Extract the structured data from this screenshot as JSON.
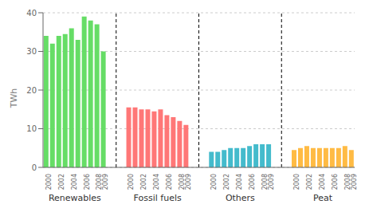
{
  "chart_data": {
    "type": "bar",
    "categories": [
      "2000",
      null,
      "2002",
      null,
      "2004",
      null,
      "2006",
      null,
      "2008",
      "2009",
      "2000",
      null,
      "2002",
      null,
      "2004",
      null,
      "2006",
      null,
      "2008",
      "2009",
      "2000",
      null,
      "2002",
      null,
      "2004",
      null,
      "2006",
      null,
      "2008",
      "2009",
      "2000",
      null,
      "2002",
      null,
      "2004",
      null,
      "2006",
      null,
      "2008",
      "2009"
    ],
    "series": [
      {
        "name": "Renewables",
        "color": "#66dd66",
        "values": [
          34.0,
          32.0,
          34.0,
          34.5,
          36.0,
          33.0,
          39.0,
          38.0,
          37.0,
          30.0,
          null,
          null,
          null,
          null,
          null,
          null,
          null,
          null,
          null,
          null,
          null,
          null,
          null,
          null,
          null,
          null,
          null,
          null,
          null,
          null,
          null,
          null,
          null,
          null,
          null,
          null,
          null,
          null,
          null,
          null
        ]
      },
      {
        "name": "Fossil fuels",
        "color": "#ff7777",
        "values": [
          null,
          null,
          null,
          null,
          null,
          null,
          null,
          null,
          null,
          null,
          15.5,
          15.5,
          15.0,
          15.0,
          14.5,
          15.0,
          13.5,
          13.0,
          12.0,
          11.0,
          null,
          null,
          null,
          null,
          null,
          null,
          null,
          null,
          null,
          null,
          null,
          null,
          null,
          null,
          null,
          null,
          null,
          null,
          null,
          null
        ]
      },
      {
        "name": "Others",
        "color": "#44bbcc",
        "values": [
          null,
          null,
          null,
          null,
          null,
          null,
          null,
          null,
          null,
          null,
          null,
          null,
          null,
          null,
          null,
          null,
          null,
          null,
          null,
          null,
          4.0,
          4.0,
          4.5,
          5.0,
          5.0,
          5.0,
          5.5,
          6.0,
          6.0,
          6.0,
          null,
          null,
          null,
          null,
          null,
          null,
          null,
          null,
          null,
          null
        ]
      },
      {
        "name": "Peat",
        "color": "#ffbb44",
        "values": [
          null,
          null,
          null,
          null,
          null,
          null,
          null,
          null,
          null,
          null,
          null,
          null,
          null,
          null,
          null,
          null,
          null,
          null,
          null,
          null,
          null,
          null,
          null,
          null,
          null,
          null,
          null,
          null,
          null,
          null,
          4.5,
          5.0,
          5.5,
          5.0,
          5.0,
          5.0,
          5.0,
          5.0,
          5.5,
          4.5
        ]
      }
    ],
    "y_label": "TWh",
    "ylim": [
      0,
      40
    ],
    "yticks": [
      0,
      10,
      20,
      30,
      40
    ],
    "grid": true
  }
}
